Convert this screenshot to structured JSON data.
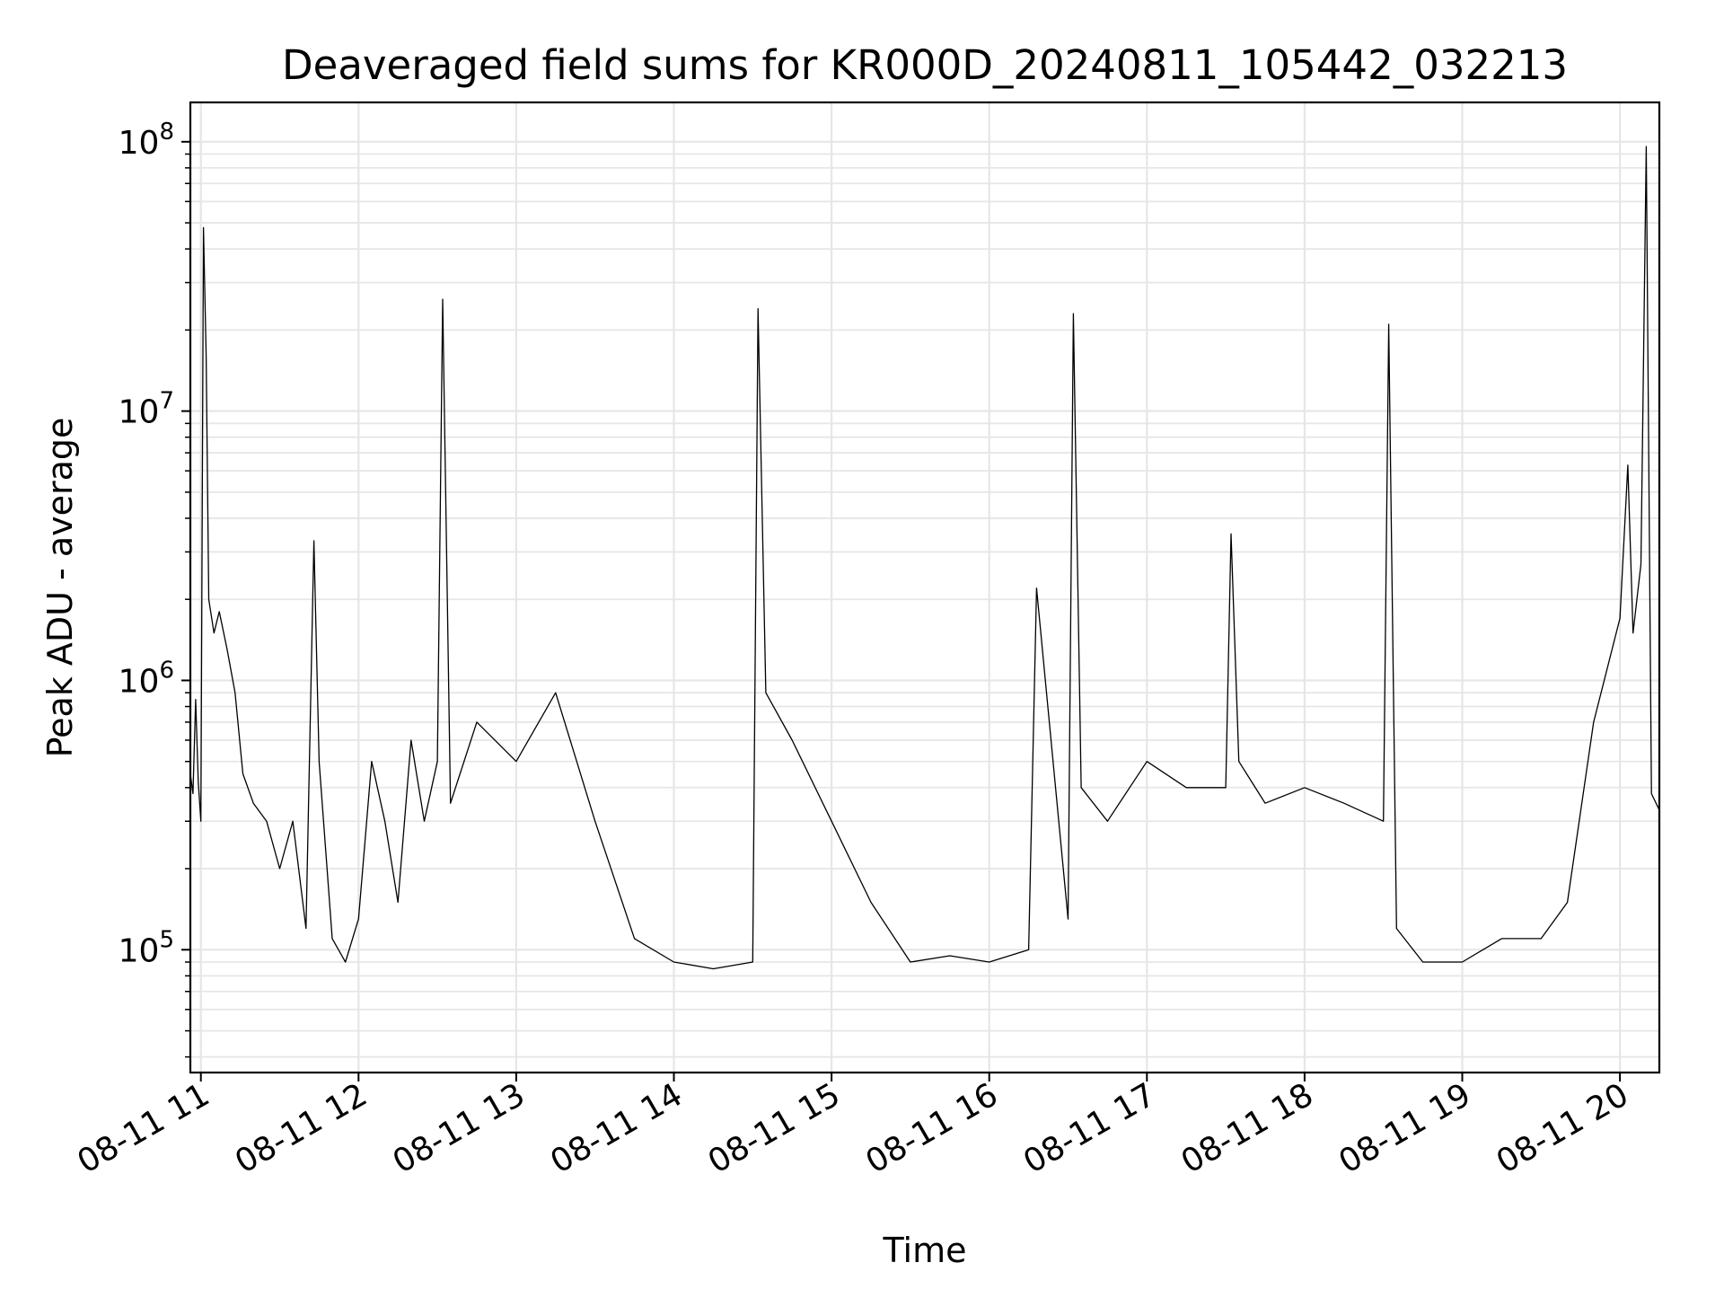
{
  "chart_data": {
    "type": "line",
    "title": "Deaveraged field sums for KR000D_20240811_105442_032213",
    "xlabel": "Time",
    "ylabel": "Peak ADU - average",
    "yscale": "log",
    "ylim": [
      35000,
      140000000
    ],
    "xlim": [
      "2024-08-11 10:56",
      "2024-08-11 20:15"
    ],
    "grid": true,
    "line_color": "#000000",
    "x_ticks": [
      {
        "value": "2024-08-11 11:00",
        "label": "08-11 11"
      },
      {
        "value": "2024-08-11 12:00",
        "label": "08-11 12"
      },
      {
        "value": "2024-08-11 13:00",
        "label": "08-11 13"
      },
      {
        "value": "2024-08-11 14:00",
        "label": "08-11 14"
      },
      {
        "value": "2024-08-11 15:00",
        "label": "08-11 15"
      },
      {
        "value": "2024-08-11 16:00",
        "label": "08-11 16"
      },
      {
        "value": "2024-08-11 17:00",
        "label": "08-11 17"
      },
      {
        "value": "2024-08-11 18:00",
        "label": "08-11 18"
      },
      {
        "value": "2024-08-11 19:00",
        "label": "08-11 19"
      },
      {
        "value": "2024-08-11 20:00",
        "label": "08-11 20"
      }
    ],
    "y_ticks": [
      {
        "value": 100000,
        "base": "10",
        "exp": "5"
      },
      {
        "value": 1000000,
        "base": "10",
        "exp": "6"
      },
      {
        "value": 10000000,
        "base": "10",
        "exp": "7"
      },
      {
        "value": 100000000,
        "base": "10",
        "exp": "8"
      }
    ],
    "x": [
      "2024-08-11 10:56",
      "2024-08-11 10:57",
      "2024-08-11 10:58",
      "2024-08-11 10:59",
      "2024-08-11 11:00",
      "2024-08-11 11:01",
      "2024-08-11 11:02",
      "2024-08-11 11:03",
      "2024-08-11 11:05",
      "2024-08-11 11:07",
      "2024-08-11 11:10",
      "2024-08-11 11:13",
      "2024-08-11 11:16",
      "2024-08-11 11:20",
      "2024-08-11 11:25",
      "2024-08-11 11:30",
      "2024-08-11 11:35",
      "2024-08-11 11:40",
      "2024-08-11 11:43",
      "2024-08-11 11:45",
      "2024-08-11 11:50",
      "2024-08-11 11:55",
      "2024-08-11 12:00",
      "2024-08-11 12:05",
      "2024-08-11 12:10",
      "2024-08-11 12:15",
      "2024-08-11 12:20",
      "2024-08-11 12:25",
      "2024-08-11 12:30",
      "2024-08-11 12:32",
      "2024-08-11 12:35",
      "2024-08-11 12:45",
      "2024-08-11 13:00",
      "2024-08-11 13:15",
      "2024-08-11 13:30",
      "2024-08-11 13:45",
      "2024-08-11 14:00",
      "2024-08-11 14:15",
      "2024-08-11 14:30",
      "2024-08-11 14:32",
      "2024-08-11 14:35",
      "2024-08-11 14:45",
      "2024-08-11 15:00",
      "2024-08-11 15:15",
      "2024-08-11 15:30",
      "2024-08-11 15:45",
      "2024-08-11 16:00",
      "2024-08-11 16:15",
      "2024-08-11 16:18",
      "2024-08-11 16:30",
      "2024-08-11 16:32",
      "2024-08-11 16:35",
      "2024-08-11 16:45",
      "2024-08-11 17:00",
      "2024-08-11 17:15",
      "2024-08-11 17:30",
      "2024-08-11 17:32",
      "2024-08-11 17:35",
      "2024-08-11 17:45",
      "2024-08-11 18:00",
      "2024-08-11 18:15",
      "2024-08-11 18:30",
      "2024-08-11 18:32",
      "2024-08-11 18:35",
      "2024-08-11 18:45",
      "2024-08-11 19:00",
      "2024-08-11 19:15",
      "2024-08-11 19:30",
      "2024-08-11 19:40",
      "2024-08-11 19:50",
      "2024-08-11 20:00",
      "2024-08-11 20:03",
      "2024-08-11 20:05",
      "2024-08-11 20:08",
      "2024-08-11 20:10",
      "2024-08-11 20:12",
      "2024-08-11 20:15"
    ],
    "values": [
      450000,
      380000,
      850000,
      420000,
      300000,
      48000000,
      16000000,
      2000000,
      1500000,
      1800000,
      1300000,
      900000,
      450000,
      350000,
      300000,
      200000,
      300000,
      120000,
      3300000,
      500000,
      110000,
      90000,
      130000,
      500000,
      300000,
      150000,
      600000,
      300000,
      500000,
      26000000,
      350000,
      700000,
      500000,
      900000,
      300000,
      110000,
      90000,
      85000,
      90000,
      24000000,
      900000,
      600000,
      300000,
      150000,
      90000,
      95000,
      90000,
      100000,
      2200000,
      130000,
      23000000,
      400000,
      300000,
      500000,
      400000,
      400000,
      3500000,
      500000,
      350000,
      400000,
      350000,
      300000,
      21000000,
      120000,
      90000,
      90000,
      110000,
      110000,
      150000,
      700000,
      1700000,
      6300000,
      1500000,
      2700000,
      96000000,
      380000,
      330000
    ]
  }
}
